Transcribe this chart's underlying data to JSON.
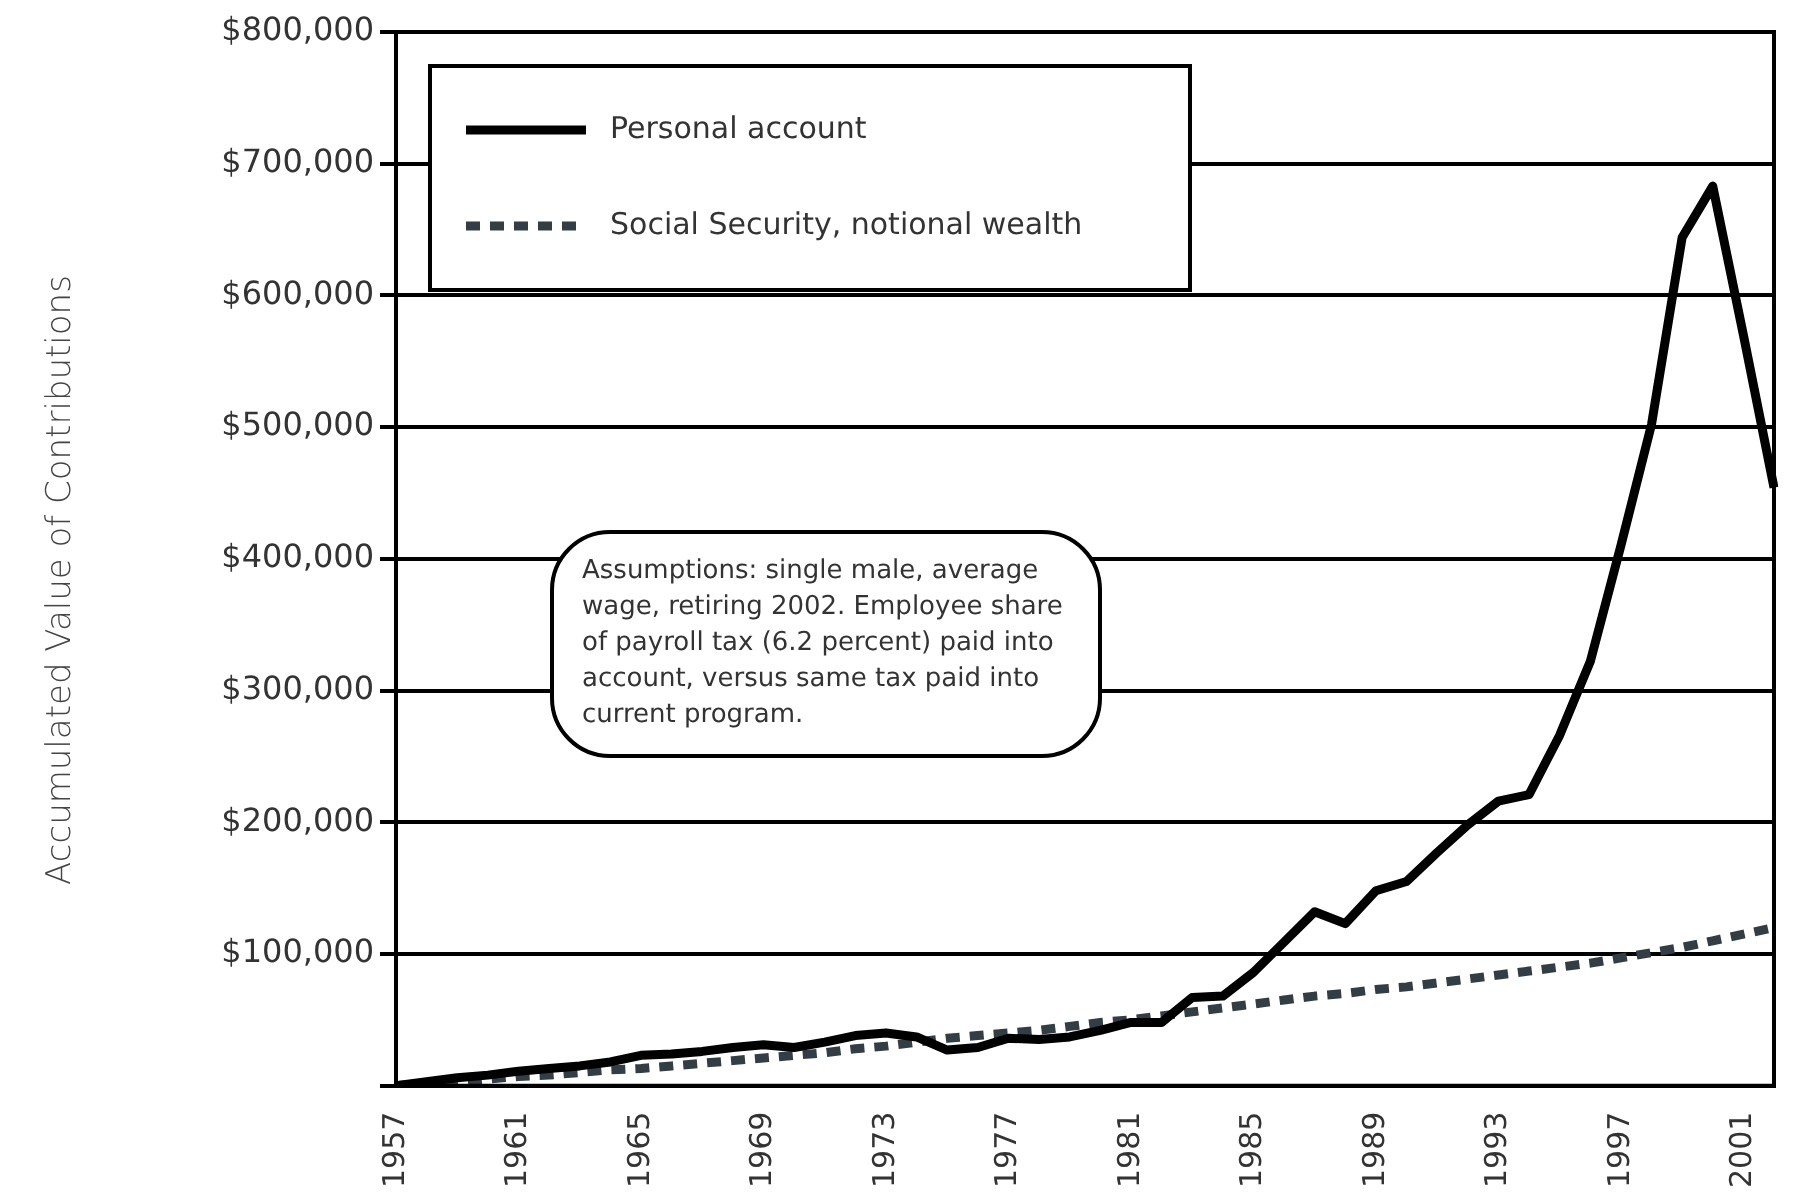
{
  "chart_data": {
    "type": "line",
    "ylabel": "Accumulated Value of Contributions",
    "categories": [
      "1957",
      null,
      null,
      null,
      "1961",
      null,
      null,
      null,
      "1965",
      null,
      null,
      null,
      "1969",
      null,
      null,
      null,
      "1973",
      null,
      null,
      null,
      "1977",
      null,
      null,
      null,
      "1981",
      null,
      null,
      null,
      "1985",
      null,
      null,
      null,
      "1989",
      null,
      null,
      null,
      "1993",
      null,
      null,
      null,
      "1997",
      null,
      null,
      null,
      "2001",
      null
    ],
    "series": [
      {
        "name": "Personal account",
        "color": "#000000",
        "line_style": "solid",
        "values": [
          0,
          3000,
          6000,
          8000,
          11000,
          13000,
          15000,
          18000,
          23000,
          24000,
          26000,
          29000,
          31000,
          29000,
          33000,
          38000,
          40000,
          37000,
          27000,
          29000,
          36000,
          35000,
          37000,
          42000,
          48000,
          48000,
          67000,
          68000,
          86000,
          109000,
          132000,
          123000,
          148000,
          155000,
          177000,
          198000,
          216000,
          221000,
          266000,
          322000,
          410000,
          502000,
          644000,
          683000,
          570000,
          454000
        ]
      },
      {
        "name": "Social Security, notional wealth",
        "color": "#333d44",
        "line_style": "dashed",
        "values": [
          0,
          2000,
          3000,
          5000,
          7000,
          8000,
          10000,
          12000,
          13000,
          15000,
          17000,
          19000,
          21000,
          23000,
          25000,
          28000,
          30000,
          33000,
          36000,
          38000,
          40000,
          42000,
          45000,
          48000,
          50000,
          53000,
          56000,
          59000,
          62000,
          65000,
          68000,
          70000,
          73000,
          75000,
          78000,
          81000,
          84000,
          87000,
          90000,
          93000,
          97000,
          101000,
          105000,
          110000,
          115000,
          120000
        ]
      }
    ],
    "ylim": [
      0,
      800000
    ],
    "yticks": [
      {
        "value": 0,
        "label": null
      },
      {
        "value": 100000,
        "label": "$100,000"
      },
      {
        "value": 200000,
        "label": "$200,000"
      },
      {
        "value": 300000,
        "label": "$300,000"
      },
      {
        "value": 400000,
        "label": "$400,000"
      },
      {
        "value": 500000,
        "label": "$500,000"
      },
      {
        "value": 600000,
        "label": "$600,000"
      },
      {
        "value": 700000,
        "label": "$700,000"
      },
      {
        "value": 800000,
        "label": "$800,000"
      }
    ],
    "grid": "y",
    "legend": "top left",
    "marker": "none",
    "annotations": [
      "Assumptions: single male, average wage, retiring 2002. Employee share of payroll tax (6.2 percent) paid into account, versus same tax paid into current program."
    ]
  }
}
